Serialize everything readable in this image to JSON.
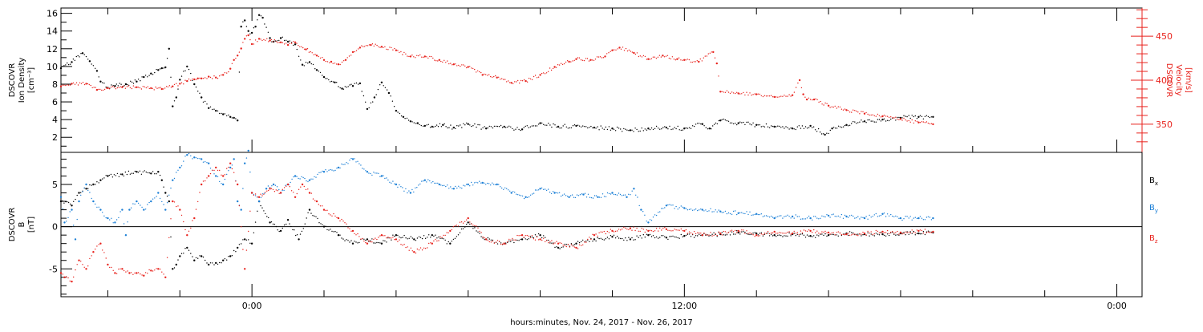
{
  "chart_data": [
    {
      "type": "scatter",
      "title": "",
      "xlabel": "",
      "x_unit": "hours since Nov. 24, 2017 00:00",
      "xlim": [
        -5.3,
        24.7
      ],
      "x_tick_labels": [
        {
          "x": 0,
          "label": "0:00"
        },
        {
          "x": 12,
          "label": "12:00"
        },
        {
          "x": 24,
          "label": "0:00"
        }
      ],
      "left_axis": {
        "label_lines": [
          "DSCOVR",
          "Ion Density",
          "[cm⁻³]"
        ],
        "ylim": [
          0.3,
          16.6
        ],
        "ticks": [
          2,
          4,
          6,
          8,
          10,
          12,
          14,
          16
        ],
        "color": "#000000"
      },
      "right_axis": {
        "label_lines": [
          "DSCOVR",
          "Velocity",
          "[km/s]"
        ],
        "ylim": [
          318,
          482
        ],
        "ticks": [
          350,
          400,
          450
        ],
        "color": "#e8221c"
      },
      "series": [
        {
          "key": "density",
          "axis": "left",
          "color": "#000000",
          "x": [
            -5.3,
            -5.0,
            -4.7,
            -4.5,
            -4.3,
            -4.2,
            -4.0,
            -3.8,
            -3.5,
            -3.2,
            -3.0,
            -2.8,
            -2.6,
            -2.5,
            -2.4,
            -2.3,
            -2.2,
            -2.1,
            -2.0,
            -1.8,
            -1.6,
            -1.4,
            -1.2,
            -1.0,
            -0.8,
            -0.6,
            -0.5,
            -0.4,
            -0.3,
            -0.2,
            -0.1,
            0.0,
            0.1,
            0.2,
            0.3,
            0.5,
            0.6,
            0.8,
            1.0,
            1.2,
            1.4,
            1.6,
            1.8,
            2.0,
            2.3,
            2.5,
            2.8,
            3.0,
            3.2,
            3.4,
            3.6,
            3.8,
            4.0,
            4.2,
            4.4,
            4.6,
            4.8,
            5.0,
            5.3,
            5.6,
            6.0,
            6.5,
            7.0,
            7.5,
            8.0,
            8.5,
            9.0,
            9.5,
            10.0,
            10.5,
            11.0,
            11.5,
            12.0,
            12.5,
            12.7,
            13.0,
            13.5,
            14.0,
            14.5,
            15.0,
            15.5,
            15.9,
            16.1,
            16.5,
            17.0,
            17.5,
            18.0,
            18.5,
            18.9
          ],
          "y": [
            9.8,
            10.5,
            11.5,
            10.6,
            9.5,
            8.3,
            7.6,
            7.8,
            8.0,
            8.3,
            8.8,
            9.2,
            9.6,
            9.8,
            9.9,
            12.0,
            5.5,
            6.5,
            8.5,
            10.0,
            8.0,
            6.5,
            5.3,
            5.0,
            4.6,
            4.3,
            4.2,
            3.9,
            14.5,
            15.2,
            14.0,
            13.8,
            14.5,
            15.8,
            15.5,
            13.2,
            12.8,
            13.2,
            12.8,
            12.5,
            10.2,
            10.5,
            9.6,
            8.8,
            8.2,
            7.5,
            7.8,
            8.1,
            5.2,
            6.5,
            8.2,
            7.0,
            5.0,
            4.3,
            3.8,
            3.6,
            3.3,
            3.2,
            3.4,
            3.1,
            3.5,
            3.0,
            3.2,
            2.9,
            3.6,
            3.2,
            3.3,
            3.1,
            3.0,
            2.8,
            3.0,
            3.1,
            3.0,
            3.5,
            3.0,
            3.9,
            3.6,
            3.4,
            3.2,
            3.0,
            3.3,
            2.3,
            3.0,
            3.4,
            3.8,
            4.0,
            4.2,
            4.3,
            4.3
          ]
        },
        {
          "key": "velocity",
          "axis": "right",
          "color": "#e8221c",
          "x": [
            -5.3,
            -5.0,
            -4.6,
            -4.3,
            -4.0,
            -3.6,
            -3.2,
            -2.8,
            -2.5,
            -2.2,
            -2.0,
            -1.8,
            -1.6,
            -1.5,
            -1.4,
            -1.2,
            -1.0,
            -0.8,
            -0.6,
            -0.5,
            -0.4,
            -0.3,
            -0.2,
            -0.1,
            0.0,
            0.2,
            0.5,
            0.8,
            1.0,
            1.2,
            1.5,
            1.8,
            2.0,
            2.2,
            2.4,
            2.6,
            2.8,
            3.0,
            3.3,
            3.6,
            4.0,
            4.4,
            4.8,
            5.2,
            5.6,
            6.0,
            6.4,
            6.8,
            7.2,
            7.6,
            8.0,
            8.4,
            8.8,
            9.0,
            9.4,
            9.8,
            10.0,
            10.2,
            10.6,
            11.0,
            11.4,
            11.8,
            12.0,
            12.4,
            12.8,
            12.9,
            13.0,
            13.5,
            14.0,
            14.5,
            15.0,
            15.2,
            15.3,
            15.4,
            15.6,
            16.0,
            16.5,
            17.0,
            17.5,
            18.0,
            18.5,
            18.9
          ],
          "y": [
            393,
            396,
            396,
            389,
            391,
            392,
            392,
            391,
            390,
            393,
            396,
            399,
            401,
            402,
            402,
            404,
            403,
            406,
            413,
            423,
            428,
            436,
            447,
            451,
            441,
            447,
            445,
            443,
            440,
            443,
            435,
            428,
            423,
            421,
            418,
            423,
            432,
            437,
            440,
            438,
            434,
            427,
            427,
            423,
            418,
            415,
            406,
            403,
            397,
            399,
            406,
            415,
            421,
            424,
            423,
            427,
            434,
            437,
            431,
            424,
            428,
            424,
            423,
            421,
            432,
            419,
            387,
            385,
            384,
            381,
            383,
            400,
            384,
            378,
            378,
            371,
            366,
            362,
            359,
            356,
            352,
            350
          ]
        }
      ]
    },
    {
      "type": "scatter",
      "title": "",
      "xlabel": "hours:minutes, Nov. 24, 2017 - Nov. 26, 2017",
      "x_unit": "hours since Nov. 24, 2017 00:00",
      "xlim": [
        -5.3,
        24.7
      ],
      "x_tick_labels": [
        {
          "x": 0,
          "label": "0:00"
        },
        {
          "x": 12,
          "label": "12:00"
        },
        {
          "x": 24,
          "label": "0:00"
        }
      ],
      "left_axis": {
        "label_lines": [
          "DSCOVR",
          "B",
          "[nT]"
        ],
        "ylim": [
          -8.3,
          8.8
        ],
        "ticks": [
          5,
          0,
          -5
        ],
        "tick_labels": [
          "5",
          "0",
          "-5"
        ],
        "zero_line": true,
        "color": "#000000"
      },
      "legend": {
        "placement": "right",
        "entries": [
          {
            "base": "B",
            "sub": "x",
            "color": "#000000"
          },
          {
            "base": "B",
            "sub": "y",
            "color": "#1b7fd6"
          },
          {
            "base": "B",
            "sub": "z",
            "color": "#e8221c"
          }
        ]
      },
      "series": [
        {
          "key": "Bx",
          "name": "Bx",
          "color": "#000000",
          "x": [
            -5.3,
            -5.0,
            -4.8,
            -4.6,
            -4.4,
            -4.2,
            -4.0,
            -3.6,
            -3.2,
            -2.8,
            -2.6,
            -2.5,
            -2.4,
            -2.3,
            -2.2,
            -2.1,
            -2.0,
            -1.8,
            -1.6,
            -1.4,
            -1.2,
            -1.0,
            -0.8,
            -0.6,
            -0.4,
            -0.2,
            0.0,
            0.2,
            0.5,
            0.8,
            1.0,
            1.3,
            1.6,
            2.0,
            2.4,
            2.8,
            3.2,
            3.6,
            4.0,
            4.5,
            5.0,
            5.5,
            6.0,
            6.5,
            7.0,
            7.5,
            8.0,
            8.5,
            9.0,
            9.5,
            10.0,
            10.5,
            11.0,
            11.5,
            12.0,
            12.5,
            13.0,
            13.5,
            14.0,
            14.5,
            15.0,
            15.5,
            16.0,
            16.5,
            17.0,
            17.5,
            18.0,
            18.5,
            18.9
          ],
          "y": [
            3.0,
            2.5,
            4.0,
            4.5,
            5.0,
            5.5,
            6.0,
            6.2,
            6.5,
            6.3,
            6.5,
            5.5,
            4.0,
            3.0,
            -5.0,
            -4.5,
            -3.5,
            -2.5,
            -4.0,
            -3.5,
            -4.5,
            -4.3,
            -4.0,
            -3.5,
            -2.5,
            -1.5,
            -2.0,
            3.0,
            0.5,
            -0.5,
            0.8,
            -1.5,
            2.0,
            0.0,
            -1.0,
            -2.0,
            -1.5,
            -2.0,
            -1.0,
            -1.5,
            -1.0,
            -2.0,
            0.5,
            -1.5,
            -2.0,
            -1.5,
            -1.0,
            -2.5,
            -2.0,
            -1.5,
            -1.2,
            -1.5,
            -1.0,
            -1.3,
            -1.1,
            -1.0,
            -0.9,
            -0.7,
            -0.8,
            -1.0,
            -0.9,
            -1.1,
            -1.0,
            -0.8,
            -0.9,
            -0.9,
            -0.8,
            -0.8,
            -0.7
          ]
        },
        {
          "key": "By",
          "name": "By",
          "color": "#1b7fd6",
          "x": [
            -5.3,
            -5.2,
            -5.0,
            -4.9,
            -4.8,
            -4.6,
            -4.4,
            -4.2,
            -4.0,
            -3.8,
            -3.6,
            -3.5,
            -3.4,
            -3.2,
            -3.0,
            -2.8,
            -2.6,
            -2.4,
            -2.2,
            -2.0,
            -1.8,
            -1.6,
            -1.4,
            -1.2,
            -1.0,
            -0.8,
            -0.6,
            -0.5,
            -0.4,
            -0.3,
            -0.2,
            -0.1,
            0.0,
            0.2,
            0.4,
            0.6,
            0.8,
            1.2,
            1.6,
            2.0,
            2.4,
            2.8,
            3.2,
            3.6,
            4.0,
            4.4,
            4.8,
            5.2,
            5.6,
            6.0,
            6.4,
            6.8,
            7.2,
            7.6,
            8.0,
            8.4,
            8.8,
            9.2,
            9.6,
            10.0,
            10.4,
            10.6,
            10.8,
            11.0,
            11.5,
            12.0,
            12.5,
            13.0,
            13.5,
            14.0,
            14.5,
            15.0,
            15.5,
            16.0,
            16.5,
            17.0,
            17.5,
            18.0,
            18.5,
            18.9
          ],
          "y": [
            3.5,
            0.5,
            2.0,
            -1.5,
            3.0,
            5.0,
            3.0,
            2.0,
            1.0,
            0.5,
            2.0,
            -1.0,
            2.0,
            3.0,
            2.0,
            3.0,
            4.0,
            2.0,
            5.5,
            7.0,
            8.5,
            8.2,
            8.0,
            7.5,
            6.0,
            5.0,
            7.0,
            8.0,
            3.0,
            2.0,
            7.5,
            9.0,
            4.0,
            3.0,
            4.5,
            5.0,
            4.0,
            6.0,
            5.5,
            6.5,
            7.0,
            8.0,
            6.5,
            6.0,
            5.0,
            4.0,
            5.5,
            5.0,
            4.5,
            5.0,
            5.2,
            5.0,
            4.0,
            3.5,
            4.5,
            4.0,
            3.5,
            3.8,
            3.5,
            4.0,
            3.5,
            4.5,
            2.0,
            0.5,
            2.5,
            2.2,
            2.0,
            1.8,
            1.6,
            1.5,
            1.0,
            1.2,
            1.0,
            1.3,
            1.2,
            1.0,
            1.5,
            1.0,
            1.0,
            1.0
          ]
        },
        {
          "key": "Bz",
          "name": "Bz",
          "color": "#e8221c",
          "x": [
            -5.3,
            -5.2,
            -5.0,
            -4.8,
            -4.6,
            -4.4,
            -4.2,
            -4.0,
            -3.8,
            -3.6,
            -3.4,
            -3.2,
            -3.0,
            -2.8,
            -2.6,
            -2.4,
            -2.2,
            -2.0,
            -1.8,
            -1.6,
            -1.4,
            -1.2,
            -1.0,
            -0.8,
            -0.6,
            -0.4,
            -0.2,
            0.0,
            0.2,
            0.5,
            0.8,
            1.0,
            1.2,
            1.4,
            1.6,
            1.8,
            2.0,
            2.4,
            2.8,
            3.2,
            3.6,
            4.0,
            4.5,
            5.0,
            5.5,
            6.0,
            6.5,
            7.0,
            7.5,
            8.0,
            8.5,
            9.0,
            9.5,
            10.0,
            10.5,
            11.0,
            11.5,
            12.0,
            12.5,
            13.0,
            13.5,
            14.0,
            14.5,
            15.0,
            15.5,
            16.0,
            16.5,
            17.0,
            17.5,
            18.0,
            18.5,
            18.9
          ],
          "y": [
            -5.5,
            -6.0,
            -6.5,
            -4.0,
            -5.0,
            -3.0,
            -2.0,
            -4.5,
            -5.5,
            -5.0,
            -5.5,
            -5.5,
            -5.8,
            -5.2,
            -5.0,
            -6.0,
            3.0,
            2.0,
            -1.0,
            1.0,
            5.0,
            6.0,
            7.0,
            6.0,
            7.5,
            5.0,
            -5.0,
            4.0,
            3.5,
            4.5,
            4.0,
            5.0,
            3.5,
            5.0,
            4.0,
            3.0,
            2.0,
            1.0,
            -0.5,
            -2.0,
            -1.0,
            -1.5,
            -3.0,
            -2.0,
            -0.5,
            1.0,
            -1.5,
            -2.0,
            -1.0,
            -1.5,
            -2.0,
            -2.5,
            -1.0,
            -0.5,
            -0.2,
            -0.5,
            -0.3,
            -0.5,
            -1.0,
            -0.8,
            -0.5,
            -1.0,
            -0.6,
            -0.8,
            -0.5,
            -0.7,
            -0.9,
            -0.8,
            -0.6,
            -0.7,
            -0.5,
            -0.6
          ]
        }
      ]
    }
  ]
}
